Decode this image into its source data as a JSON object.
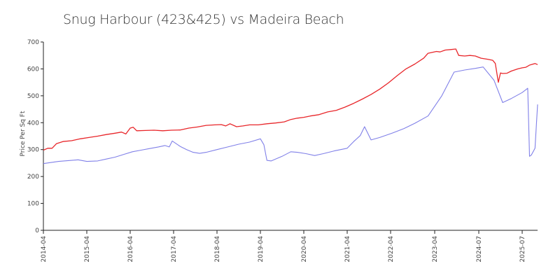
{
  "chart_data": {
    "type": "line",
    "title": "Snug Harbour (423&425) vs Madeira Beach",
    "xlabel": "",
    "ylabel": "Price Per Sq Ft",
    "ylim": [
      0,
      700
    ],
    "yticks": [
      "0",
      "100",
      "200",
      "300",
      "400",
      "500",
      "600",
      "700"
    ],
    "xlim": [
      2014.25,
      2025.92
    ],
    "xticks": [
      {
        "label": "2014-04",
        "x": 2014.25
      },
      {
        "label": "2015-04",
        "x": 2015.25
      },
      {
        "label": "2016-04",
        "x": 2016.25
      },
      {
        "label": "2017-04",
        "x": 2017.25
      },
      {
        "label": "2018-04",
        "x": 2018.25
      },
      {
        "label": "2019-04",
        "x": 2019.25
      },
      {
        "label": "2020-04",
        "x": 2020.25
      },
      {
        "label": "2021-04",
        "x": 2021.25
      },
      {
        "label": "2022-04",
        "x": 2022.25
      },
      {
        "label": "2023-04",
        "x": 2023.25
      },
      {
        "label": "2024-07",
        "x": 2024.5
      },
      {
        "label": "2025-07",
        "x": 2025.5
      }
    ],
    "grid": false,
    "series": [
      {
        "color": "#e8262a",
        "points": [
          [
            2014.25,
            298
          ],
          [
            2014.35,
            305
          ],
          [
            2014.45,
            305
          ],
          [
            2014.55,
            322
          ],
          [
            2014.7,
            330
          ],
          [
            2014.9,
            333
          ],
          [
            2015.1,
            340
          ],
          [
            2015.3,
            345
          ],
          [
            2015.5,
            350
          ],
          [
            2015.7,
            356
          ],
          [
            2015.9,
            361
          ],
          [
            2016.05,
            365
          ],
          [
            2016.15,
            358
          ],
          [
            2016.25,
            380
          ],
          [
            2016.32,
            383
          ],
          [
            2016.4,
            370
          ],
          [
            2016.6,
            371
          ],
          [
            2016.8,
            372
          ],
          [
            2017.0,
            370
          ],
          [
            2017.2,
            372
          ],
          [
            2017.4,
            373
          ],
          [
            2017.6,
            380
          ],
          [
            2017.8,
            384
          ],
          [
            2018.0,
            390
          ],
          [
            2018.2,
            392
          ],
          [
            2018.35,
            393
          ],
          [
            2018.45,
            388
          ],
          [
            2018.55,
            396
          ],
          [
            2018.7,
            385
          ],
          [
            2018.85,
            388
          ],
          [
            2019.0,
            392
          ],
          [
            2019.2,
            392
          ],
          [
            2019.4,
            396
          ],
          [
            2019.6,
            399
          ],
          [
            2019.8,
            403
          ],
          [
            2019.95,
            412
          ],
          [
            2020.1,
            417
          ],
          [
            2020.25,
            420
          ],
          [
            2020.4,
            425
          ],
          [
            2020.6,
            430
          ],
          [
            2020.8,
            440
          ],
          [
            2021.0,
            446
          ],
          [
            2021.2,
            458
          ],
          [
            2021.4,
            472
          ],
          [
            2021.6,
            488
          ],
          [
            2021.8,
            505
          ],
          [
            2022.0,
            525
          ],
          [
            2022.2,
            548
          ],
          [
            2022.4,
            575
          ],
          [
            2022.6,
            600
          ],
          [
            2022.8,
            618
          ],
          [
            2023.0,
            640
          ],
          [
            2023.1,
            658
          ],
          [
            2023.3,
            665
          ],
          [
            2023.4,
            663
          ],
          [
            2023.55,
            670
          ],
          [
            2023.7,
            672
          ],
          [
            2023.85,
            674
          ],
          [
            2023.93,
            650
          ],
          [
            2024.1,
            648
          ],
          [
            2024.25,
            650
          ],
          [
            2024.4,
            648
          ],
          [
            2024.55,
            640
          ],
          [
            2024.7,
            636
          ],
          [
            2024.82,
            632
          ],
          [
            2024.88,
            620
          ],
          [
            2024.95,
            550
          ],
          [
            2025.0,
            585
          ],
          [
            2025.05,
            583
          ],
          [
            2025.15,
            584
          ],
          [
            2025.25,
            592
          ],
          [
            2025.4,
            600
          ],
          [
            2025.5,
            604
          ],
          [
            2025.6,
            606
          ],
          [
            2025.65,
            610
          ],
          [
            2025.7,
            614
          ],
          [
            2025.75,
            616
          ],
          [
            2025.8,
            618
          ],
          [
            2025.85,
            620
          ],
          [
            2025.92,
            616
          ]
        ]
      },
      {
        "color": "#8080e8",
        "points": [
          [
            2014.25,
            248
          ],
          [
            2014.6,
            256
          ],
          [
            2014.9,
            260
          ],
          [
            2015.05,
            262
          ],
          [
            2015.25,
            256
          ],
          [
            2015.5,
            258
          ],
          [
            2015.7,
            265
          ],
          [
            2015.9,
            272
          ],
          [
            2016.1,
            282
          ],
          [
            2016.3,
            292
          ],
          [
            2016.5,
            298
          ],
          [
            2016.7,
            304
          ],
          [
            2016.9,
            310
          ],
          [
            2017.05,
            315
          ],
          [
            2017.15,
            310
          ],
          [
            2017.22,
            332
          ],
          [
            2017.4,
            312
          ],
          [
            2017.55,
            300
          ],
          [
            2017.7,
            290
          ],
          [
            2017.85,
            286
          ],
          [
            2018.0,
            290
          ],
          [
            2018.25,
            300
          ],
          [
            2018.5,
            310
          ],
          [
            2018.75,
            320
          ],
          [
            2019.0,
            328
          ],
          [
            2019.25,
            340
          ],
          [
            2019.33,
            318
          ],
          [
            2019.4,
            260
          ],
          [
            2019.5,
            258
          ],
          [
            2019.75,
            275
          ],
          [
            2019.95,
            292
          ],
          [
            2020.1,
            290
          ],
          [
            2020.3,
            285
          ],
          [
            2020.5,
            278
          ],
          [
            2020.7,
            285
          ],
          [
            2020.95,
            295
          ],
          [
            2021.25,
            305
          ],
          [
            2021.4,
            330
          ],
          [
            2021.55,
            352
          ],
          [
            2021.65,
            385
          ],
          [
            2021.8,
            336
          ],
          [
            2022.0,
            345
          ],
          [
            2022.3,
            362
          ],
          [
            2022.55,
            378
          ],
          [
            2022.8,
            398
          ],
          [
            2023.1,
            425
          ],
          [
            2023.45,
            500
          ],
          [
            2023.8,
            588
          ],
          [
            2024.1,
            596
          ],
          [
            2024.4,
            602
          ],
          [
            2024.6,
            607
          ],
          [
            2024.85,
            558
          ],
          [
            2025.05,
            475
          ],
          [
            2025.25,
            490
          ],
          [
            2025.5,
            512
          ],
          [
            2025.65,
            528
          ],
          [
            2025.7,
            275
          ],
          [
            2025.75,
            280
          ],
          [
            2025.85,
            305
          ],
          [
            2025.92,
            468
          ]
        ]
      }
    ]
  }
}
